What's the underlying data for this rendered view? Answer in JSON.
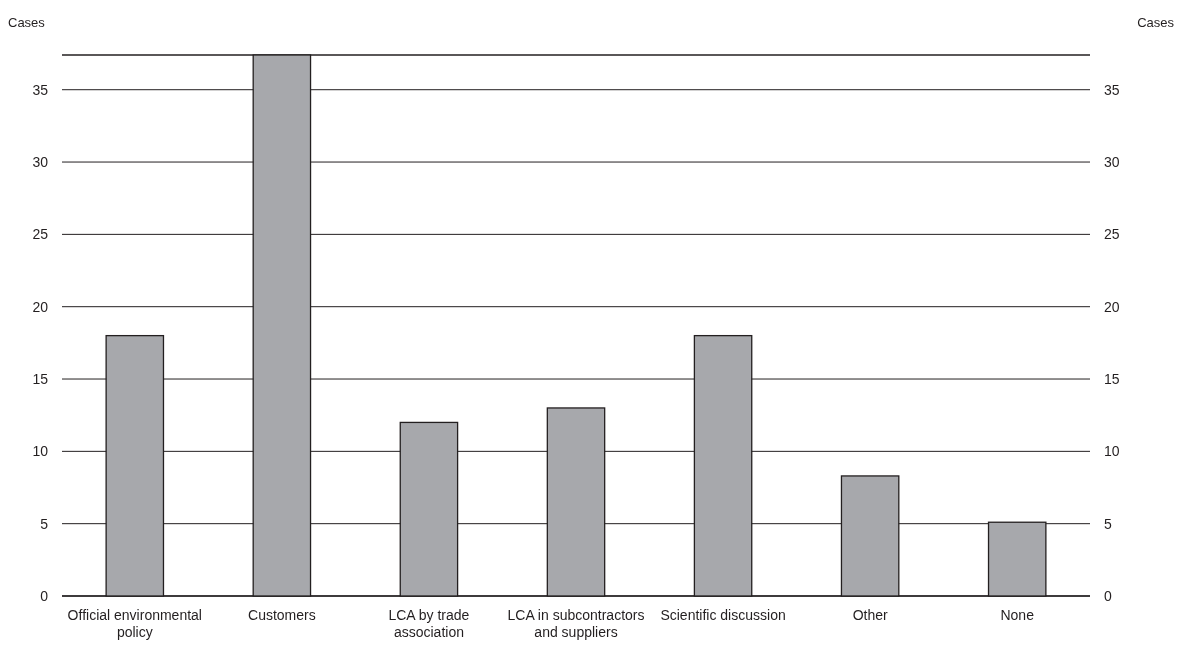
{
  "chart_data": {
    "type": "bar",
    "categories": [
      "Official environmental policy",
      "Customers",
      "LCA by trade association",
      "LCA in subcontractors and suppliers",
      "Scientific discussion",
      "Other",
      "None"
    ],
    "values": [
      18,
      37.4,
      12,
      13,
      18,
      8.3,
      5.1
    ],
    "color": "#a7a8ac",
    "ylabel": "Cases",
    "y2label": "Cases",
    "ylim": [
      0,
      37.4
    ],
    "yticks": [
      0,
      5,
      10,
      15,
      20,
      25,
      30,
      35
    ],
    "y2lim": [
      0,
      37.4
    ],
    "y2ticks": [
      0,
      5,
      10,
      15,
      20,
      25,
      30,
      35
    ],
    "grid": "y"
  }
}
